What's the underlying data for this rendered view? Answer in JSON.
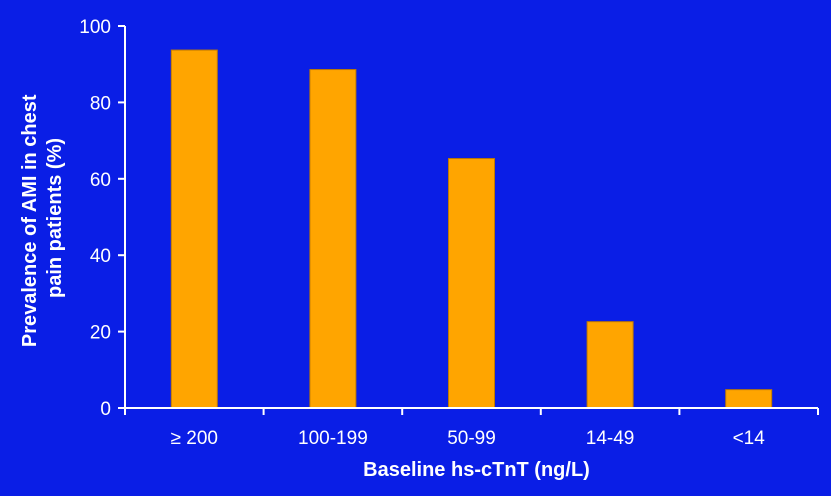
{
  "colors": {
    "background": "#0a1ee6",
    "bar_fill": "#ffa500",
    "bar_stroke": "#c07a00",
    "axis": "#ffffff",
    "text": "#ffffff"
  },
  "chart_data": {
    "type": "bar",
    "title": "",
    "xlabel": "Baseline hs-cTnT (ng/L)",
    "ylabel_lines": [
      "Prevalence of AMI in chest",
      "pain patients (%)"
    ],
    "categories": [
      "≥ 200",
      "100-199",
      "50-99",
      "14-49",
      "<14"
    ],
    "values": [
      93.7,
      88.6,
      65.3,
      22.6,
      4.8
    ],
    "ylim": [
      0,
      100
    ],
    "yticks": [
      0,
      20,
      40,
      60,
      80,
      100
    ],
    "grid": false,
    "legend": "none"
  }
}
